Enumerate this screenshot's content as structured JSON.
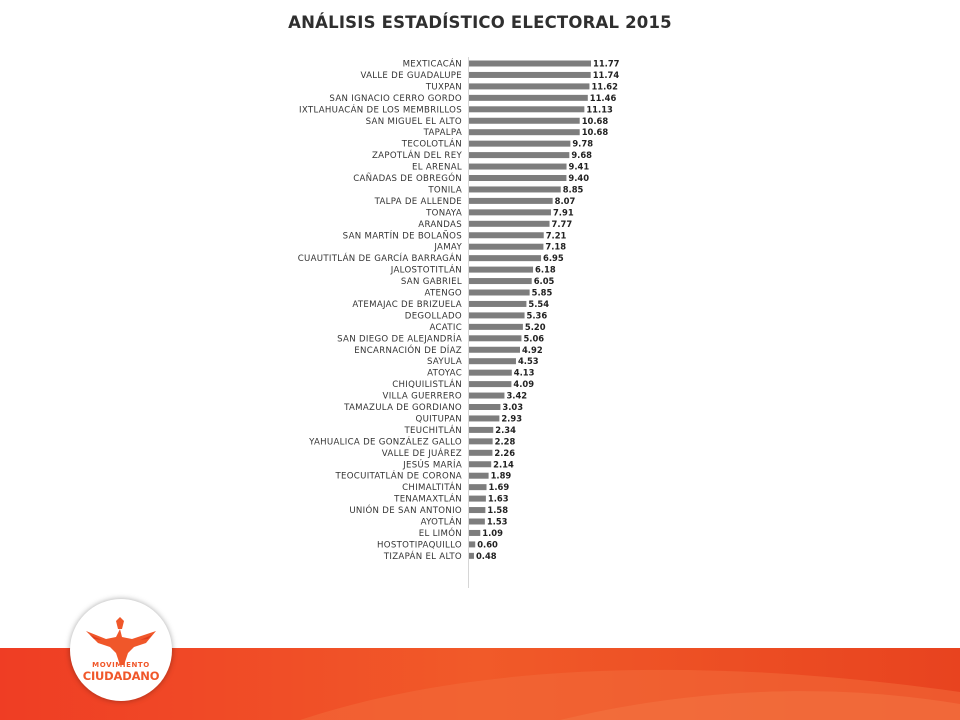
{
  "title": "ANÁLISIS ESTADÍSTICO ELECTORAL 2015",
  "logo": {
    "line1": "MOVIMIENTO",
    "line2": "CIUDADANO"
  },
  "colors": {
    "bar": "#7d7d7d",
    "accent": "#f0572a",
    "accent_dark": "#e03c1e"
  },
  "chart_data": {
    "type": "bar",
    "orientation": "horizontal",
    "title": "ANÁLISIS ESTADÍSTICO ELECTORAL 2015",
    "xlabel": "",
    "ylabel": "",
    "grid": false,
    "categories": [
      "MEXTICACÁN",
      "VALLE DE GUADALUPE",
      "TUXPAN",
      "SAN IGNACIO CERRO GORDO",
      "IXTLAHUACÁN DE LOS MEMBRILLOS",
      "SAN MIGUEL EL ALTO",
      "TAPALPA",
      "TECOLOTLÁN",
      "ZAPOTLÁN DEL REY",
      "EL ARENAL",
      "CAÑADAS DE OBREGÓN",
      "TONILA",
      "TALPA DE ALLENDE",
      "TONAYA",
      "ARANDAS",
      "SAN MARTÍN DE BOLAÑOS",
      "JAMAY",
      "CUAUTITLÁN DE GARCÍA BARRAGÁN",
      "JALOSTOTITLÁN",
      "SAN GABRIEL",
      "ATENGO",
      "ATEMAJAC DE BRIZUELA",
      "DEGOLLADO",
      "ACATIC",
      "SAN DIEGO DE ALEJANDRÍA",
      "ENCARNACIÓN DE DÍAZ",
      "SAYULA",
      "ATOYAC",
      "CHIQUILISTLÁN",
      "VILLA GUERRERO",
      "TAMAZULA DE GORDIANO",
      "QUITUPAN",
      "TEUCHITLÁN",
      "YAHUALICA DE GONZÁLEZ GALLO",
      "VALLE DE JUÁREZ",
      "JESÚS MARÍA",
      "TEOCUITATLÁN DE CORONA",
      "CHIMALTITÁN",
      "TENAMAXTLÁN",
      "UNIÓN DE SAN ANTONIO",
      "AYOTLÁN",
      "EL LIMÓN",
      "HOSTOTIPAQUILLO",
      "TIZAPÁN EL ALTO"
    ],
    "values": [
      11.77,
      11.74,
      11.62,
      11.46,
      11.13,
      10.68,
      10.68,
      9.78,
      9.68,
      9.41,
      9.4,
      8.85,
      8.07,
      7.91,
      7.77,
      7.21,
      7.18,
      6.95,
      6.18,
      6.05,
      5.85,
      5.54,
      5.36,
      5.2,
      5.06,
      4.92,
      4.53,
      4.13,
      4.09,
      3.42,
      3.03,
      2.93,
      2.34,
      2.28,
      2.26,
      2.14,
      1.89,
      1.69,
      1.63,
      1.58,
      1.53,
      1.09,
      0.6,
      0.48
    ],
    "value_labels": [
      "11.77",
      "11.74",
      "11.62",
      "11.46",
      "11.13",
      "10.68",
      "10.68",
      "9.78",
      "9.68",
      "9.41",
      "9.40",
      "8.85",
      "8.07",
      "7.91",
      "7.77",
      "7.21",
      "7.18",
      "6.95",
      "6.18",
      "6.05",
      "5.85",
      "5.54",
      "5.36",
      "5.20",
      "5.06",
      "4.92",
      "4.53",
      "4.13",
      "4.09",
      "3.42",
      "3.03",
      "2.93",
      "2.34",
      "2.28",
      "2.26",
      "2.14",
      "1.89",
      "1.69",
      "1.63",
      "1.58",
      "1.53",
      "1.09",
      "0.60",
      "0.48"
    ],
    "xlim": [
      0,
      11.77
    ]
  }
}
